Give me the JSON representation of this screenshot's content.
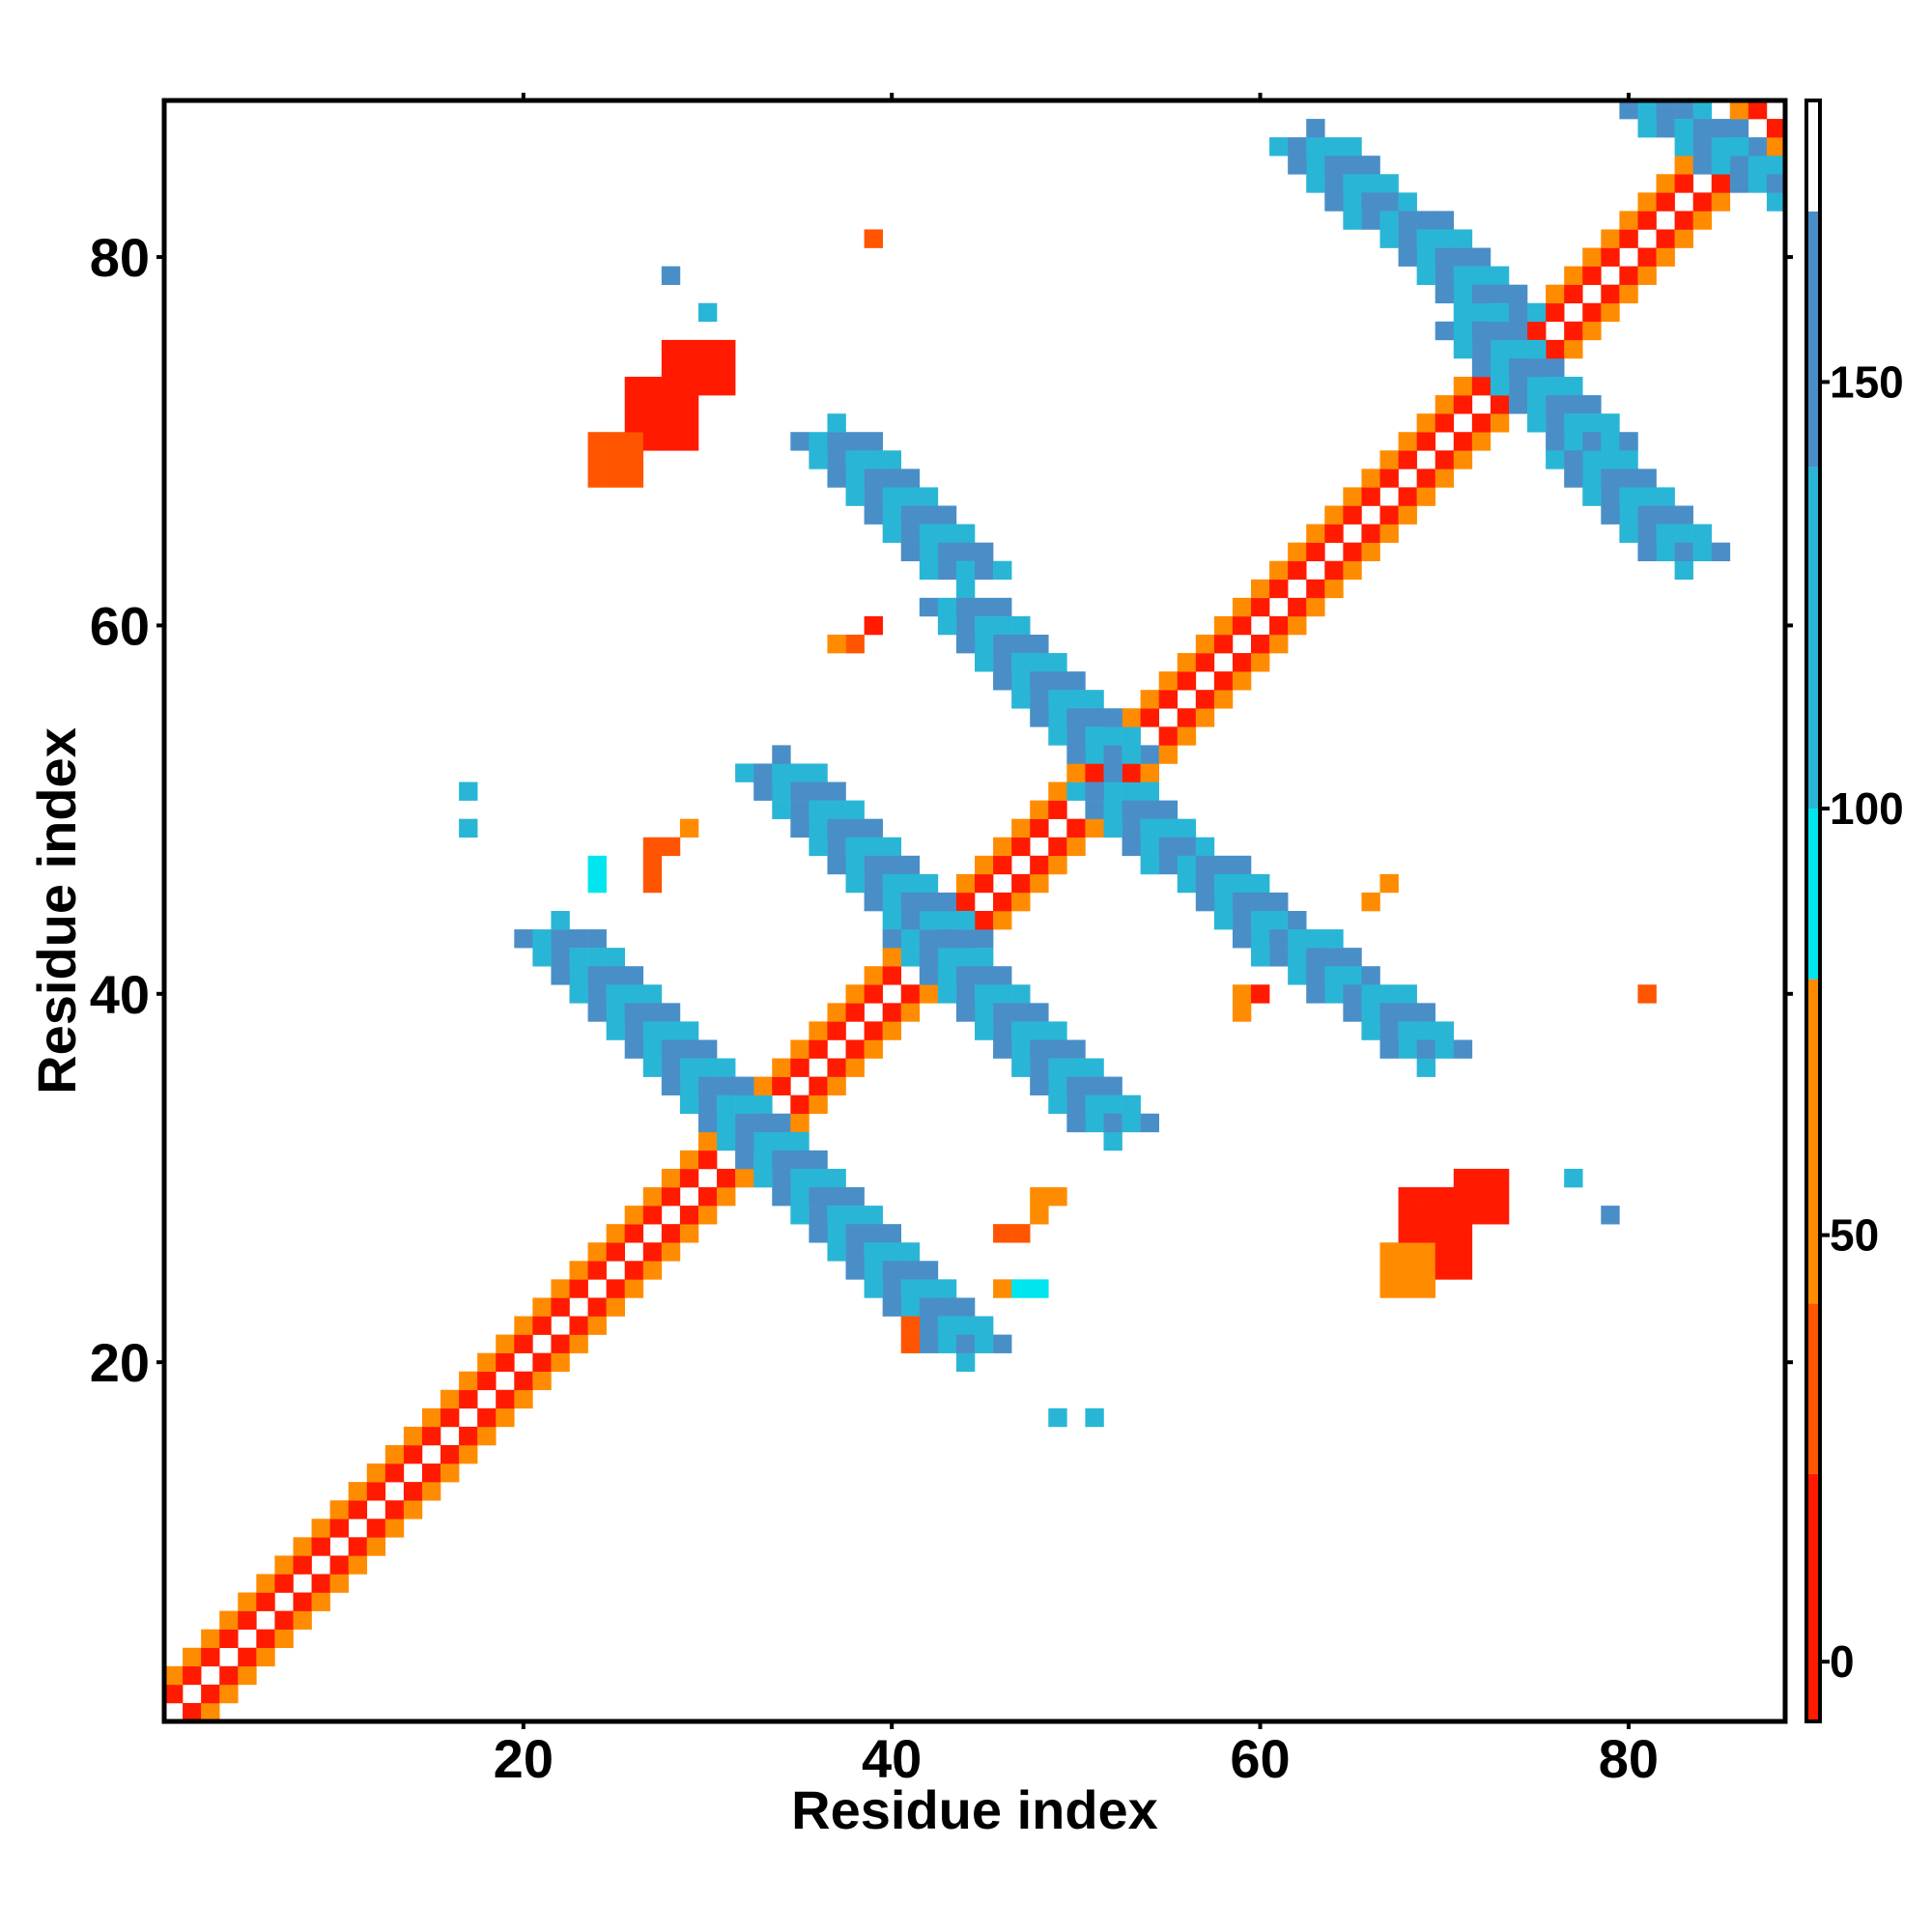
{
  "chart_data": {
    "type": "heatmap",
    "xlabel": "Residue index",
    "ylabel": "Residue index",
    "xlim": [
      0.5,
      88.5
    ],
    "ylim": [
      0.5,
      88.5
    ],
    "xticks": [
      20,
      40,
      60,
      80
    ],
    "yticks": [
      20,
      40,
      60,
      80
    ],
    "x_tick_labels": [
      "20",
      "40",
      "60",
      "80"
    ],
    "y_tick_labels": [
      "20",
      "40",
      "60",
      "80"
    ],
    "grid": false,
    "legend": "right",
    "colorbar": {
      "range": [
        -7,
        183
      ],
      "ticks": [
        0,
        50,
        100,
        150
      ],
      "tick_labels": [
        "0",
        "50",
        "100",
        "150"
      ],
      "stops": [
        {
          "from": -7,
          "to": 22,
          "color": "#ff1a00"
        },
        {
          "from": 22,
          "to": 42,
          "color": "#ff5500"
        },
        {
          "from": 42,
          "to": 80,
          "color": "#ff8c00"
        },
        {
          "from": 80,
          "to": 100,
          "color": "#00e5ee"
        },
        {
          "from": 100,
          "to": 140,
          "color": "#29b6d6"
        },
        {
          "from": 140,
          "to": 170,
          "color": "#4a8ec7"
        },
        {
          "from": 170,
          "to": 183,
          "color": "#ffffff"
        }
      ]
    },
    "segments": [
      {
        "x": [
          1,
          30
        ],
        "y": [
          1,
          30
        ],
        "diag": "+",
        "vals": [
          10,
          60
        ]
      },
      {
        "x": [
          30,
          88
        ],
        "y": [
          30,
          88
        ],
        "diag": "+",
        "vals": [
          10,
          60
        ]
      },
      {
        "x": [
          22,
          34
        ],
        "y": [
          43,
          31
        ],
        "diag": "-",
        "vals": [
          140,
          115
        ]
      },
      {
        "x": [
          32,
          44
        ],
        "y": [
          33,
          21
        ],
        "diag": "-",
        "vals": [
          150,
          115
        ]
      },
      {
        "x": [
          34,
          43
        ],
        "y": [
          52,
          43
        ],
        "diag": "-",
        "vals": [
          115,
          150
        ]
      },
      {
        "x": [
          42,
          52
        ],
        "y": [
          43,
          33
        ],
        "diag": "-",
        "vals": [
          150,
          115
        ]
      },
      {
        "x": [
          37,
          44
        ],
        "y": [
          70,
          63
        ],
        "diag": "-",
        "vals": [
          140,
          115
        ]
      },
      {
        "x": [
          44,
          52
        ],
        "y": [
          61,
          53
        ],
        "diag": "-",
        "vals": [
          150,
          115
        ]
      },
      {
        "x": [
          52,
          62
        ],
        "y": [
          51,
          42
        ],
        "diag": "-",
        "vals": [
          115,
          150
        ]
      },
      {
        "x": [
          62,
          69
        ],
        "y": [
          43,
          37
        ],
        "diag": "-",
        "vals": [
          115,
          150
        ]
      },
      {
        "x": [
          63,
          73
        ],
        "y": [
          86,
          77
        ],
        "diag": "-",
        "vals": [
          115,
          150
        ]
      },
      {
        "x": [
          72,
          83
        ],
        "y": [
          76,
          64
        ],
        "diag": "-",
        "vals": [
          150,
          115
        ]
      },
      {
        "x": [
          82,
          88
        ],
        "y": [
          88,
          84
        ],
        "diag": "-",
        "vals": [
          150,
          115
        ]
      }
    ],
    "patches": [
      {
        "x": [
          26,
          29
        ],
        "y": [
          70,
          73
        ],
        "val": 12
      },
      {
        "x": [
          24,
          26
        ],
        "y": [
          68,
          70
        ],
        "val": 40
      },
      {
        "x": [
          28,
          31
        ],
        "y": [
          73,
          75
        ],
        "val": 15
      },
      {
        "x": [
          68,
          71
        ],
        "y": [
          25,
          29
        ],
        "val": 12
      },
      {
        "x": [
          71,
          73
        ],
        "y": [
          28,
          30
        ],
        "val": 20
      },
      {
        "x": [
          67,
          69
        ],
        "y": [
          24,
          26
        ],
        "val": 45
      }
    ],
    "points": [
      {
        "x": 28,
        "y": 79,
        "val": 145
      },
      {
        "x": 30,
        "y": 77,
        "val": 115
      },
      {
        "x": 39,
        "y": 81,
        "val": 40
      },
      {
        "x": 17,
        "y": 51,
        "val": 115
      },
      {
        "x": 17,
        "y": 49,
        "val": 115
      },
      {
        "x": 39,
        "y": 60,
        "val": 12
      },
      {
        "x": 38,
        "y": 59,
        "val": 40
      },
      {
        "x": 37,
        "y": 59,
        "val": 45
      },
      {
        "x": 24,
        "y": 47,
        "val": 90
      },
      {
        "x": 24,
        "y": 46,
        "val": 90
      },
      {
        "x": 27,
        "y": 48,
        "val": 40
      },
      {
        "x": 28,
        "y": 48,
        "val": 40
      },
      {
        "x": 29,
        "y": 49,
        "val": 50
      },
      {
        "x": 27,
        "y": 47,
        "val": 40
      },
      {
        "x": 27,
        "y": 46,
        "val": 40
      },
      {
        "x": 49,
        "y": 17,
        "val": 115
      },
      {
        "x": 51,
        "y": 17,
        "val": 115
      },
      {
        "x": 59,
        "y": 40,
        "val": 50
      },
      {
        "x": 59,
        "y": 39,
        "val": 50
      },
      {
        "x": 60,
        "y": 40,
        "val": 12
      },
      {
        "x": 81,
        "y": 40,
        "val": 40
      },
      {
        "x": 77,
        "y": 30,
        "val": 115
      },
      {
        "x": 79,
        "y": 28,
        "val": 145
      },
      {
        "x": 46,
        "y": 27,
        "val": 40
      },
      {
        "x": 47,
        "y": 27,
        "val": 40
      },
      {
        "x": 48,
        "y": 28,
        "val": 45
      },
      {
        "x": 49,
        "y": 29,
        "val": 50
      },
      {
        "x": 48,
        "y": 29,
        "val": 45
      },
      {
        "x": 46,
        "y": 24,
        "val": 50
      },
      {
        "x": 47,
        "y": 24,
        "val": 90
      },
      {
        "x": 48,
        "y": 24,
        "val": 90
      },
      {
        "x": 41,
        "y": 21,
        "val": 40
      },
      {
        "x": 41,
        "y": 22,
        "val": 40
      },
      {
        "x": 66,
        "y": 45,
        "val": 50
      },
      {
        "x": 67,
        "y": 46,
        "val": 50
      }
    ]
  }
}
